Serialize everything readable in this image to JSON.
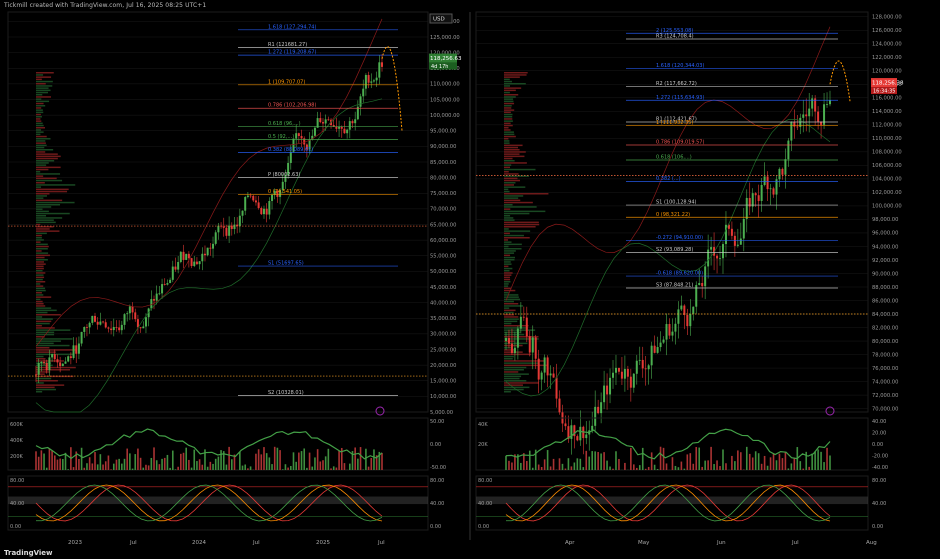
{
  "header": {
    "text": "Tickmill created with TradingView.com, Jul 16, 2025 08:25 UTC+1"
  },
  "footer": {
    "brand": "TradingView"
  },
  "colors": {
    "bg": "#000000",
    "up": "#4caf50",
    "down": "#e53935",
    "grid": "#1a1a1a",
    "label": "#9e9e9e",
    "fib_blue": "#2962ff",
    "fib_orange": "#ff9800",
    "price_badge": "#e53935",
    "badge_green": "#2e7d32"
  },
  "chart_data": [
    {
      "type": "candlestick",
      "panel": "left",
      "currency_label": "USD",
      "x_labels": [
        "2023",
        "Jul",
        "2024",
        "Jul",
        "2025",
        "Jul"
      ],
      "y_ticks": [
        "130,000.00",
        "125,000.00",
        "120,000.00",
        "115,000.00",
        "110,000.00",
        "105,000.00",
        "100,000.00",
        "95,000.00",
        "90,000.00",
        "85,000.00",
        "80,000.00",
        "75,000.00",
        "70,000.00",
        "65,000.00",
        "60,000.00",
        "55,000.00",
        "50,000.00",
        "45,000.00",
        "40,000.00",
        "35,000.00",
        "30,000.00",
        "25,000.00",
        "20,000.00",
        "15,000.00",
        "10,000.00",
        "5,000.00"
      ],
      "ylim": [
        5000,
        133000
      ],
      "last_price_label": "118,256.63",
      "badge_sub": "4d 17h",
      "fib_levels": [
        {
          "label": "1.618 (127,294.74)",
          "value": 127295,
          "color": "#2962ff"
        },
        {
          "label": "R1 (121681.27)",
          "value": 121681,
          "color": "#cccccc"
        },
        {
          "label": "1.272 (119,208.67)",
          "value": 119209,
          "color": "#2962ff"
        },
        {
          "label": "1 (109,707.07)",
          "value": 109707,
          "color": "#ff9800"
        },
        {
          "label": "0.786 (102,206.98)",
          "value": 102207,
          "color": "#ef5350"
        },
        {
          "label": "0.618 (96,...)",
          "value": 96300,
          "color": "#4caf50"
        },
        {
          "label": "0.5 (92,...)",
          "value": 92200,
          "color": "#4caf50"
        },
        {
          "label": "0.382 (88,089.61)",
          "value": 88090,
          "color": "#2962ff"
        },
        {
          "label": "P (80002.63)",
          "value": 80003,
          "color": "#cccccc"
        },
        {
          "label": "0 (74,541.05)",
          "value": 74541,
          "color": "#ff9800"
        },
        {
          "label": "S1 (51697.65)",
          "value": 51698,
          "color": "#2962ff"
        },
        {
          "label": "S2 (10328.01)",
          "value": 10328,
          "color": "#cccccc"
        }
      ],
      "volume_ticks": [
        "600K",
        "400K",
        "200K"
      ],
      "momentum_ticks": [
        "50.00",
        "0.00",
        "-50.00"
      ],
      "stoch_ticks": [
        "80.00",
        "40.00",
        "0.00"
      ]
    },
    {
      "type": "candlestick",
      "panel": "right",
      "x_labels": [
        "Apr",
        "May",
        "Jun",
        "Jul",
        "Aug"
      ],
      "y_ticks": [
        "128,000.00",
        "126,000.00",
        "124,000.00",
        "122,000.00",
        "120,000.00",
        "118,000.00",
        "116,000.00",
        "114,000.00",
        "112,000.00",
        "110,000.00",
        "108,000.00",
        "106,000.00",
        "104,000.00",
        "102,000.00",
        "100,000.00",
        "98,000.00",
        "96,000.00",
        "94,000.00",
        "92,000.00",
        "90,000.00",
        "88,000.00",
        "86,000.00",
        "84,000.00",
        "82,000.00",
        "80,000.00",
        "78,000.00",
        "76,000.00",
        "74,000.00",
        "72,000.00",
        "70,000.00"
      ],
      "ylim": [
        69500,
        128700
      ],
      "last_price_label": "118,256.38",
      "badge_sub": "16:34:35",
      "fib_levels": [
        {
          "label": "2 (125,553.08)",
          "value": 125553,
          "color": "#2962ff"
        },
        {
          "label": "R3 (124,708.4)",
          "value": 124708,
          "color": "#cccccc"
        },
        {
          "label": "1.618 (120,344.03)",
          "value": 120344,
          "color": "#2962ff"
        },
        {
          "label": "R2 (117,662.72)",
          "value": 117663,
          "color": "#cccccc"
        },
        {
          "label": "1.272 (115,634.93)",
          "value": 115635,
          "color": "#2962ff"
        },
        {
          "label": "R1 (112,421.67)",
          "value": 112422,
          "color": "#cccccc"
        },
        {
          "label": "1 (111,932.35)",
          "value": 111932,
          "color": "#ff9800"
        },
        {
          "label": "0.786 (109,019.57)",
          "value": 109020,
          "color": "#ef5350"
        },
        {
          "label": "0.618 (106,...)",
          "value": 106800,
          "color": "#4caf50"
        },
        {
          "label": "0.382 (...)",
          "value": 103600,
          "color": "#2962ff"
        },
        {
          "label": "S1 (100,128.94)",
          "value": 100129,
          "color": "#cccccc"
        },
        {
          "label": "0 (98,321.22)",
          "value": 98321,
          "color": "#ff9800"
        },
        {
          "label": "-0.272 (94,910.00)",
          "value": 94910,
          "color": "#2962ff"
        },
        {
          "label": "S2 (93,089.28)",
          "value": 93089,
          "color": "#cccccc"
        },
        {
          "label": "-0.618 (89,620.00)",
          "value": 89620,
          "color": "#2962ff"
        },
        {
          "label": "S3 (87,848.21)",
          "value": 87848,
          "color": "#cccccc"
        }
      ],
      "volume_ticks": [
        "40K",
        "20K"
      ],
      "momentum_ticks": [
        "40.00",
        "20.00",
        "0.00",
        "-20.00",
        "-40.00"
      ],
      "stoch_ticks": [
        "80.00",
        "40.00",
        "0.00"
      ]
    }
  ]
}
